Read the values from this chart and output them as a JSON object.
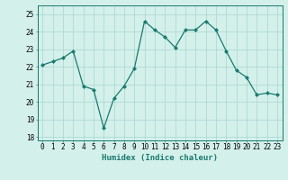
{
  "x": [
    0,
    1,
    2,
    3,
    4,
    5,
    6,
    7,
    8,
    9,
    10,
    11,
    12,
    13,
    14,
    15,
    16,
    17,
    18,
    19,
    20,
    21,
    22,
    23
  ],
  "y": [
    22.1,
    22.3,
    22.5,
    22.9,
    20.9,
    20.7,
    18.5,
    20.2,
    20.9,
    21.9,
    24.6,
    24.1,
    23.7,
    23.1,
    24.1,
    24.1,
    24.6,
    24.1,
    22.9,
    21.8,
    21.4,
    20.4,
    20.5,
    20.4
  ],
  "line_color": "#1a7a6e",
  "marker": "D",
  "marker_size": 2,
  "bg_color": "#d4f0eb",
  "grid_color": "#9ecfca",
  "xlabel": "Humidex (Indice chaleur)",
  "xlim": [
    -0.5,
    23.5
  ],
  "ylim": [
    17.8,
    25.5
  ],
  "yticks": [
    18,
    19,
    20,
    21,
    22,
    23,
    24,
    25
  ],
  "xticks": [
    0,
    1,
    2,
    3,
    4,
    5,
    6,
    7,
    8,
    9,
    10,
    11,
    12,
    13,
    14,
    15,
    16,
    17,
    18,
    19,
    20,
    21,
    22,
    23
  ],
  "xlabel_fontsize": 6.5,
  "tick_fontsize": 5.5,
  "linewidth": 0.9
}
